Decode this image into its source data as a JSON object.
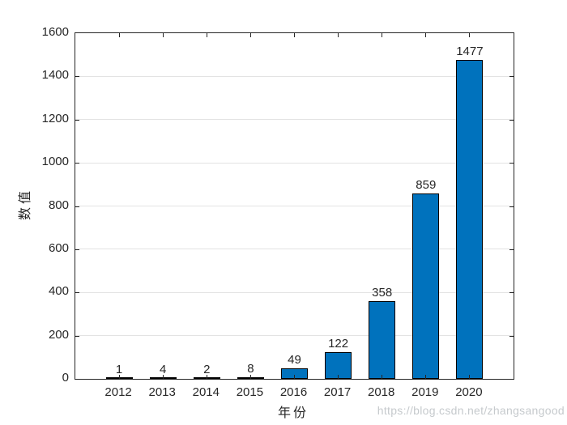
{
  "chart_data": {
    "type": "bar",
    "title": "",
    "categories": [
      "2012",
      "2013",
      "2014",
      "2015",
      "2016",
      "2017",
      "2018",
      "2019",
      "2020"
    ],
    "values": [
      1,
      4,
      2,
      8,
      49,
      122,
      358,
      859,
      1477
    ],
    "xlabel": "年份",
    "ylabel": "数值",
    "ylim": [
      0,
      1600
    ],
    "ytick_interval": 200,
    "ytick_labels": [
      "0",
      "200",
      "400",
      "600",
      "800",
      "1000",
      "1200",
      "1400",
      "1600"
    ],
    "grid": "horizontal gridlines only, box on, ticks inward on all four sides",
    "legend_position": "none",
    "bar_value_labels_shown": true,
    "bar_color": "#0072BD",
    "bar_edge_color": "#000000",
    "axis_color": "#262626",
    "grid_color": "#e3e3e3"
  },
  "watermark": {
    "text": "https://blog.csdn.net/zhangsangood",
    "color": "#c6cacd"
  }
}
